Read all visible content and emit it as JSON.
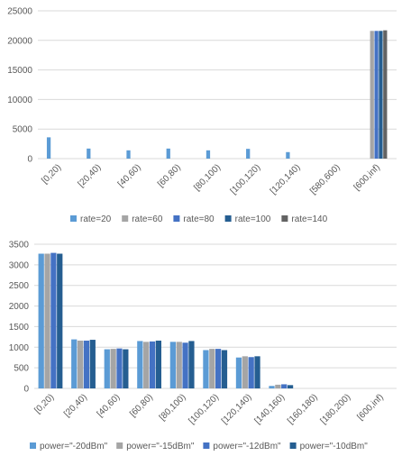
{
  "colors": {
    "blue_light": "#5B9BD5",
    "grey": "#A5A5A5",
    "blue_mid": "#4472C4",
    "blue_dark": "#255E91",
    "dark_grey": "#636363",
    "gridline": "#D9D9D9",
    "tick_text": "#595959"
  },
  "chart_data": [
    {
      "type": "bar",
      "title": "",
      "xlabel": "",
      "ylabel": "",
      "categories": [
        "[0,20)",
        "[20,40)",
        "[40,60)",
        "[60,80)",
        "[80,100)",
        "[100,120)",
        "[120,140)",
        "[580,600)",
        "[600,inf)"
      ],
      "ylim": [
        0,
        25000
      ],
      "yticks": [
        0,
        5000,
        10000,
        15000,
        20000,
        25000
      ],
      "grid": true,
      "legend_position": "bottom",
      "series": [
        {
          "name": "rate=20",
          "color": "#5B9BD5",
          "values": [
            3600,
            1700,
            1400,
            1700,
            1400,
            1650,
            1100,
            0,
            0
          ]
        },
        {
          "name": "rate=60",
          "color": "#A5A5A5",
          "values": [
            0,
            0,
            0,
            0,
            0,
            0,
            0,
            0,
            21600
          ]
        },
        {
          "name": "rate=80",
          "color": "#4472C4",
          "values": [
            0,
            0,
            0,
            0,
            0,
            0,
            0,
            0,
            21600
          ]
        },
        {
          "name": "rate=100",
          "color": "#255E91",
          "values": [
            0,
            0,
            0,
            0,
            0,
            0,
            0,
            0,
            21600
          ]
        },
        {
          "name": "rate=140",
          "color": "#636363",
          "values": [
            0,
            0,
            0,
            0,
            0,
            0,
            0,
            0,
            21700
          ]
        }
      ]
    },
    {
      "type": "bar",
      "title": "",
      "xlabel": "",
      "ylabel": "",
      "categories": [
        "[0,20)",
        "[20,40)",
        "[40,60)",
        "[60,80)",
        "[80,100)",
        "[100,120)",
        "[120,140)",
        "[140,160)",
        "[160,180)",
        "[180,200)",
        "[600,inf)"
      ],
      "ylim": [
        0,
        3500
      ],
      "yticks": [
        0,
        500,
        1000,
        1500,
        2000,
        2500,
        3000,
        3500
      ],
      "grid": true,
      "legend_position": "bottom",
      "series": [
        {
          "name": "power=\"-20dBm\"",
          "color": "#5B9BD5",
          "values": [
            3270,
            1190,
            950,
            1150,
            1130,
            930,
            750,
            60,
            0,
            0,
            0
          ]
        },
        {
          "name": "power=\"-15dBm\"",
          "color": "#A5A5A5",
          "values": [
            3270,
            1160,
            960,
            1130,
            1130,
            960,
            780,
            90,
            0,
            0,
            0
          ]
        },
        {
          "name": "power=\"-12dBm\"",
          "color": "#4472C4",
          "values": [
            3290,
            1160,
            970,
            1140,
            1110,
            960,
            760,
            100,
            0,
            0,
            0
          ]
        },
        {
          "name": "power=\"-10dBm\"",
          "color": "#255E91",
          "values": [
            3270,
            1180,
            950,
            1160,
            1150,
            930,
            780,
            80,
            0,
            0,
            0
          ]
        }
      ]
    }
  ]
}
